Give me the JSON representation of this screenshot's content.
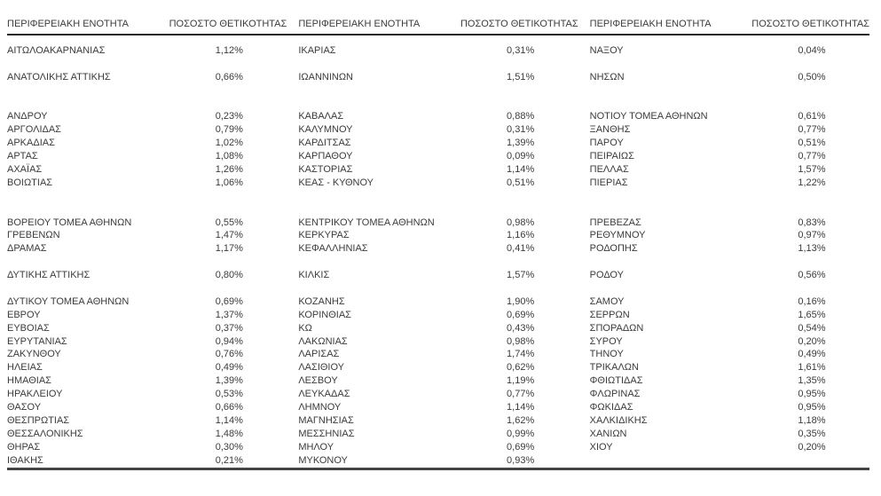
{
  "colors": {
    "page_background": "#ffffff",
    "text": "#3b3b3b",
    "header_rule": "#262626",
    "footer_rule": "#444444"
  },
  "table": {
    "column_groups": [
      {
        "header": {
          "region": "ΠΕΡΙΦΕΡΕΙΑΚΗ ΕΝΟΤΗΤΑ",
          "positivity": "ΠΟΣΟΣΤΟ ΘΕΤΙΚΟΤΗΤΑΣ"
        },
        "rows": [
          {
            "region": "ΑΙΤΩΛΟΑΚΑΡΝΑΝΙΑΣ",
            "positivity": "1,12%"
          },
          null,
          {
            "region": "ΑΝΑΤΟΛΙΚΗΣ ΑΤΤΙΚΗΣ",
            "positivity": "0,66%"
          },
          null,
          null,
          {
            "region": "ΑΝΔΡΟΥ",
            "positivity": "0,23%"
          },
          {
            "region": "ΑΡΓΟΛΙΔΑΣ",
            "positivity": "0,79%"
          },
          {
            "region": "ΑΡΚΑΔΙΑΣ",
            "positivity": "1,02%"
          },
          {
            "region": "ΑΡΤΑΣ",
            "positivity": "1,08%"
          },
          {
            "region": "ΑΧΑΪΑΣ",
            "positivity": "1,26%"
          },
          {
            "region": "ΒΟΙΩΤΙΑΣ",
            "positivity": "1,06%"
          },
          null,
          null,
          {
            "region": "ΒΟΡΕΙΟΥ ΤΟΜΕΑ ΑΘΗΝΩΝ",
            "positivity": "0,55%"
          },
          {
            "region": "ΓΡΕΒΕΝΩΝ",
            "positivity": "1,47%"
          },
          {
            "region": "ΔΡΑΜΑΣ",
            "positivity": "1,17%"
          },
          null,
          {
            "region": "ΔΥΤΙΚΗΣ ΑΤΤΙΚΗΣ",
            "positivity": "0,80%"
          },
          null,
          {
            "region": "ΔΥΤΙΚΟΥ ΤΟΜΕΑ ΑΘΗΝΩΝ",
            "positivity": "0,69%"
          },
          {
            "region": "ΕΒΡΟΥ",
            "positivity": "1,37%"
          },
          {
            "region": "ΕΥΒΟΙΑΣ",
            "positivity": "0,37%"
          },
          {
            "region": "ΕΥΡΥΤΑΝΙΑΣ",
            "positivity": "0,94%"
          },
          {
            "region": "ΖΑΚΥΝΘΟΥ",
            "positivity": "0,76%"
          },
          {
            "region": "ΗΛΕΙΑΣ",
            "positivity": "0,49%"
          },
          {
            "region": "ΗΜΑΘΙΑΣ",
            "positivity": "1,39%"
          },
          {
            "region": "ΗΡΑΚΛΕΙΟΥ",
            "positivity": "0,53%"
          },
          {
            "region": "ΘΑΣΟΥ",
            "positivity": "0,66%"
          },
          {
            "region": "ΘΕΣΠΡΩΤΙΑΣ",
            "positivity": "1,14%"
          },
          {
            "region": "ΘΕΣΣΑΛΟΝΙΚΗΣ",
            "positivity": "1,48%"
          },
          {
            "region": "ΘΗΡΑΣ",
            "positivity": "0,30%"
          },
          {
            "region": "ΙΘΑΚΗΣ",
            "positivity": "0,21%"
          }
        ]
      },
      {
        "header": {
          "region": "ΠΕΡΙΦΕΡΕΙΑΚΗ ΕΝΟΤΗΤΑ",
          "positivity": "ΠΟΣΟΣΤΟ ΘΕΤΙΚΟΤΗΤΑΣ"
        },
        "rows": [
          {
            "region": "ΙΚΑΡΙΑΣ",
            "positivity": "0,31%"
          },
          null,
          {
            "region": "ΙΩΑΝΝΙΝΩΝ",
            "positivity": "1,51%"
          },
          null,
          null,
          {
            "region": "ΚΑΒΑΛΑΣ",
            "positivity": "0,88%"
          },
          {
            "region": "ΚΑΛΥΜΝΟΥ",
            "positivity": "0,31%"
          },
          {
            "region": "ΚΑΡΔΙΤΣΑΣ",
            "positivity": "1,39%"
          },
          {
            "region": "ΚΑΡΠΑΘΟΥ",
            "positivity": "0,09%"
          },
          {
            "region": "ΚΑΣΤΟΡΙΑΣ",
            "positivity": "1,14%"
          },
          {
            "region": "ΚΕΑΣ - ΚΥΘΝΟΥ",
            "positivity": "0,51%"
          },
          null,
          null,
          {
            "region": "ΚΕΝΤΡΙΚΟΥ ΤΟΜΕΑ ΑΘΗΝΩΝ",
            "positivity": "0,98%"
          },
          {
            "region": "ΚΕΡΚΥΡΑΣ",
            "positivity": "1,16%"
          },
          {
            "region": "ΚΕΦΑΛΛΗΝΙΑΣ",
            "positivity": "0,41%"
          },
          null,
          {
            "region": "ΚΙΛΚΙΣ",
            "positivity": "1,57%"
          },
          null,
          {
            "region": "ΚΟΖΑΝΗΣ",
            "positivity": "1,90%"
          },
          {
            "region": "ΚΟΡΙΝΘΙΑΣ",
            "positivity": "0,69%"
          },
          {
            "region": "ΚΩ",
            "positivity": "0,43%"
          },
          {
            "region": "ΛΑΚΩΝΙΑΣ",
            "positivity": "0,98%"
          },
          {
            "region": "ΛΑΡΙΣΑΣ",
            "positivity": "1,74%"
          },
          {
            "region": "ΛΑΣΙΘΙΟΥ",
            "positivity": "0,62%"
          },
          {
            "region": "ΛΕΣΒΟΥ",
            "positivity": "1,19%"
          },
          {
            "region": "ΛΕΥΚΑΔΑΣ",
            "positivity": "0,77%"
          },
          {
            "region": "ΛΗΜΝΟΥ",
            "positivity": "1,14%"
          },
          {
            "region": "ΜΑΓΝΗΣΙΑΣ",
            "positivity": "1,62%"
          },
          {
            "region": "ΜΕΣΣΗΝΙΑΣ",
            "positivity": "0,99%"
          },
          {
            "region": "ΜΗΛΟΥ",
            "positivity": "0,69%"
          },
          {
            "region": "ΜΥΚΟΝΟΥ",
            "positivity": "0,93%"
          }
        ]
      },
      {
        "header": {
          "region": "ΠΕΡΙΦΕΡΕΙΑΚΗ ΕΝΟΤΗΤΑ",
          "positivity": "ΠΟΣΟΣΤΟ ΘΕΤΙΚΟΤΗΤΑΣ"
        },
        "rows": [
          {
            "region": "ΝΑΞΟΥ",
            "positivity": "0,04%"
          },
          null,
          {
            "region": "ΝΗΣΩΝ",
            "positivity": "0,50%"
          },
          null,
          null,
          {
            "region": "ΝΟΤΙΟΥ ΤΟΜΕΑ ΑΘΗΝΩΝ",
            "positivity": "0,61%"
          },
          {
            "region": "ΞΑΝΘΗΣ",
            "positivity": "0,77%"
          },
          {
            "region": "ΠΑΡΟΥ",
            "positivity": "0,51%"
          },
          {
            "region": "ΠΕΙΡΑΙΩΣ",
            "positivity": "0,77%"
          },
          {
            "region": "ΠΕΛΛΑΣ",
            "positivity": "1,57%"
          },
          {
            "region": "ΠΙΕΡΙΑΣ",
            "positivity": "1,22%"
          },
          null,
          null,
          {
            "region": "ΠΡΕΒΕΖΑΣ",
            "positivity": "0,83%"
          },
          {
            "region": "ΡΕΘΥΜΝΟΥ",
            "positivity": "0,97%"
          },
          {
            "region": "ΡΟΔΟΠΗΣ",
            "positivity": "1,13%"
          },
          null,
          {
            "region": "ΡΟΔΟΥ",
            "positivity": "0,56%"
          },
          null,
          {
            "region": "ΣΑΜΟΥ",
            "positivity": "0,16%"
          },
          {
            "region": "ΣΕΡΡΩΝ",
            "positivity": "1,65%"
          },
          {
            "region": "ΣΠΟΡΑΔΩΝ",
            "positivity": "0,54%"
          },
          {
            "region": "ΣΥΡΟΥ",
            "positivity": "0,20%"
          },
          {
            "region": "ΤΗΝΟΥ",
            "positivity": "0,49%"
          },
          {
            "region": "ΤΡΙΚΑΛΩΝ",
            "positivity": "1,61%"
          },
          {
            "region": "ΦΘΙΩΤΙΔΑΣ",
            "positivity": "1,35%"
          },
          {
            "region": "ΦΛΩΡΙΝΑΣ",
            "positivity": "0,95%"
          },
          {
            "region": "ΦΩΚΙΔΑΣ",
            "positivity": "0,95%"
          },
          {
            "region": "ΧΑΛΚΙΔΙΚΗΣ",
            "positivity": "1,18%"
          },
          {
            "region": "ΧΑΝΙΩΝ",
            "positivity": "0,35%"
          },
          {
            "region": "ΧΙΟΥ",
            "positivity": "0,20%"
          },
          null
        ]
      }
    ]
  }
}
